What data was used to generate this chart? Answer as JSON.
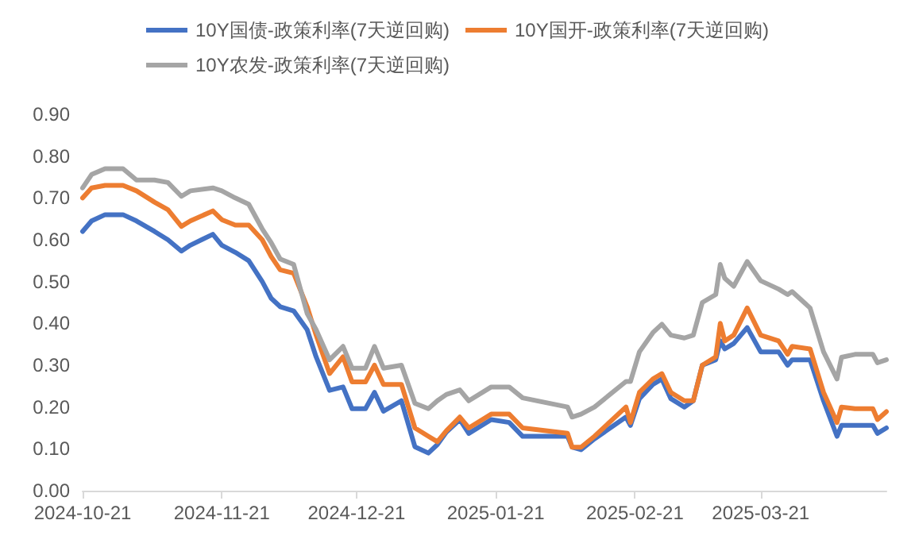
{
  "chart_data": {
    "type": "line",
    "x": [
      "2024-10-21",
      "2024-10-23",
      "2024-10-26",
      "2024-10-30",
      "2024-11-02",
      "2024-11-06",
      "2024-11-09",
      "2024-11-12",
      "2024-11-14",
      "2024-11-19",
      "2024-11-21",
      "2024-11-24",
      "2024-11-27",
      "2024-11-30",
      "2024-12-02",
      "2024-12-04",
      "2024-12-07",
      "2024-12-10",
      "2024-12-12",
      "2024-12-15",
      "2024-12-18",
      "2024-12-20",
      "2024-12-23",
      "2024-12-25",
      "2024-12-27",
      "2024-12-31",
      "2025-01-03",
      "2025-01-06",
      "2025-01-08",
      "2025-01-10",
      "2025-01-13",
      "2025-01-15",
      "2025-01-20",
      "2025-01-24",
      "2025-01-27",
      "2025-02-06",
      "2025-02-07",
      "2025-02-09",
      "2025-02-12",
      "2025-02-19",
      "2025-02-20",
      "2025-02-22",
      "2025-02-25",
      "2025-02-27",
      "2025-03-01",
      "2025-03-04",
      "2025-03-06",
      "2025-03-08",
      "2025-03-11",
      "2025-03-12",
      "2025-03-13",
      "2025-03-15",
      "2025-03-18",
      "2025-03-21",
      "2025-03-25",
      "2025-03-27",
      "2025-03-28",
      "2025-04-01",
      "2025-04-04",
      "2025-04-07",
      "2025-04-08",
      "2025-04-11",
      "2025-04-15",
      "2025-04-16",
      "2025-04-18"
    ],
    "series": [
      {
        "name": "10Y国债-政策利率(7天逆回购)",
        "color": "#4472c4",
        "values": [
          0.62,
          0.645,
          0.66,
          0.66,
          0.645,
          0.62,
          0.6,
          0.573,
          0.587,
          0.613,
          0.587,
          0.57,
          0.55,
          0.5,
          0.46,
          0.44,
          0.43,
          0.385,
          0.32,
          0.24,
          0.248,
          0.196,
          0.196,
          0.235,
          0.19,
          0.215,
          0.105,
          0.09,
          0.11,
          0.14,
          0.17,
          0.137,
          0.17,
          0.163,
          0.13,
          0.13,
          0.104,
          0.098,
          0.124,
          0.176,
          0.156,
          0.22,
          0.254,
          0.267,
          0.22,
          0.2,
          0.215,
          0.3,
          0.313,
          0.358,
          0.339,
          0.352,
          0.39,
          0.332,
          0.332,
          0.3,
          0.313,
          0.313,
          0.215,
          0.13,
          0.156,
          0.156,
          0.156,
          0.137,
          0.15
        ]
      },
      {
        "name": "10Y国开-政策利率(7天逆回购)",
        "color": "#ed7d31",
        "values": [
          0.7,
          0.724,
          0.73,
          0.73,
          0.717,
          0.69,
          0.672,
          0.632,
          0.645,
          0.669,
          0.648,
          0.635,
          0.635,
          0.6,
          0.56,
          0.528,
          0.52,
          0.44,
          0.372,
          0.28,
          0.32,
          0.26,
          0.26,
          0.3,
          0.254,
          0.254,
          0.15,
          0.13,
          0.117,
          0.143,
          0.176,
          0.15,
          0.183,
          0.183,
          0.15,
          0.137,
          0.104,
          0.104,
          0.13,
          0.2,
          0.163,
          0.235,
          0.267,
          0.28,
          0.235,
          0.215,
          0.215,
          0.3,
          0.32,
          0.4,
          0.358,
          0.372,
          0.437,
          0.372,
          0.358,
          0.326,
          0.345,
          0.339,
          0.235,
          0.163,
          0.2,
          0.196,
          0.196,
          0.17,
          0.189
        ]
      },
      {
        "name": "10Y农发-政策利率(7天逆回购)",
        "color": "#a5a5a5",
        "values": [
          0.724,
          0.756,
          0.77,
          0.77,
          0.743,
          0.743,
          0.737,
          0.704,
          0.717,
          0.724,
          0.717,
          0.7,
          0.685,
          0.626,
          0.593,
          0.554,
          0.541,
          0.424,
          0.385,
          0.313,
          0.345,
          0.293,
          0.293,
          0.345,
          0.293,
          0.3,
          0.209,
          0.196,
          0.215,
          0.23,
          0.241,
          0.215,
          0.248,
          0.248,
          0.222,
          0.2,
          0.176,
          0.183,
          0.2,
          0.261,
          0.261,
          0.332,
          0.378,
          0.398,
          0.372,
          0.365,
          0.372,
          0.45,
          0.469,
          0.541,
          0.508,
          0.489,
          0.548,
          0.502,
          0.482,
          0.469,
          0.476,
          0.437,
          0.332,
          0.267,
          0.319,
          0.326,
          0.326,
          0.306,
          0.313
        ]
      }
    ],
    "xlim": [
      "2024-10-21",
      "2025-04-18"
    ],
    "xticks": [
      "2024-10-21",
      "2024-11-21",
      "2024-12-21",
      "2025-01-21",
      "2025-02-21",
      "2025-03-21"
    ],
    "ylim": [
      0,
      0.9
    ],
    "yticks": [
      {
        "value": 0,
        "label": "0.00"
      },
      {
        "value": 0.1,
        "label": "0.10"
      },
      {
        "value": 0.2,
        "label": "0.20"
      },
      {
        "value": 0.3,
        "label": "0.30"
      },
      {
        "value": 0.4,
        "label": "0.40"
      },
      {
        "value": 0.5,
        "label": "0.50"
      },
      {
        "value": 0.6,
        "label": "0.60"
      },
      {
        "value": 0.7,
        "label": "0.70"
      },
      {
        "value": 0.8,
        "label": "0.80"
      },
      {
        "value": 0.9,
        "label": "0.90"
      }
    ],
    "grid": false,
    "legend": "top",
    "marker": "none",
    "line_style": "solid"
  }
}
